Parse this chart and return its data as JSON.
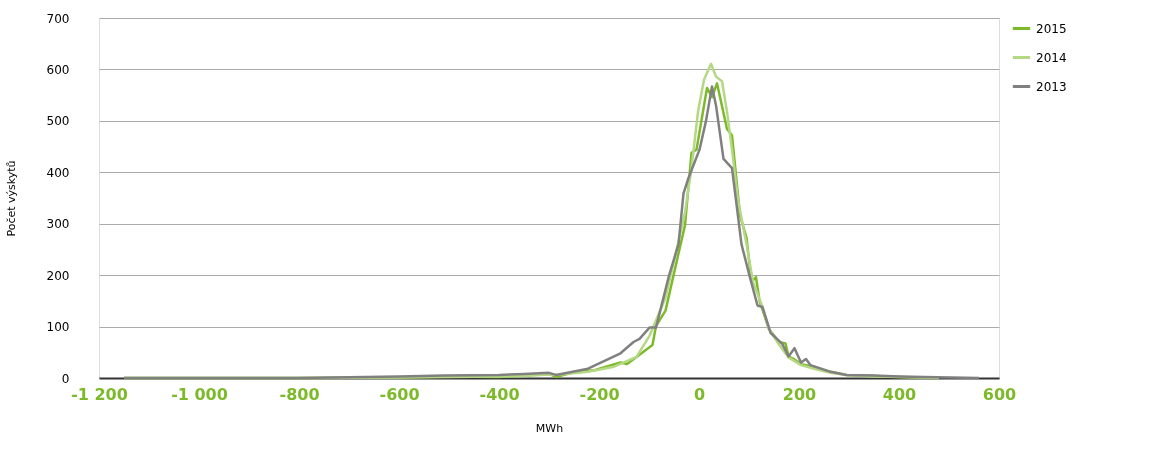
{
  "chart_data": {
    "type": "line",
    "xlabel": "MWh",
    "ylabel": "Počet výskytů",
    "xlim": [
      -1200,
      600
    ],
    "ylim": [
      0,
      700
    ],
    "xticks": [
      {
        "value": -1200,
        "label": "-1 200"
      },
      {
        "value": -1000,
        "label": "-1 000"
      },
      -800,
      -600,
      -400,
      -200,
      0,
      200,
      400,
      600
    ],
    "yticks": [
      0,
      100,
      200,
      300,
      400,
      500,
      600,
      700
    ],
    "grid": "y",
    "legend": "top right",
    "line_style": "solid",
    "marker": "none",
    "series": [
      {
        "name": "2015",
        "color": "#7dba2a",
        "x": [
          -1150,
          -1000,
          -800,
          -600,
          -500,
          -400,
          -350,
          -300,
          -286,
          -248,
          -209,
          -157,
          -144,
          -119,
          -93,
          -86,
          -67,
          -41,
          -28,
          -15,
          -5,
          16,
          26,
          36,
          56,
          66,
          82,
          95,
          105,
          114,
          121,
          140,
          160,
          173,
          179,
          191,
          204,
          230,
          263,
          295,
          350,
          400,
          480
        ],
        "values": [
          0,
          0,
          0,
          1,
          3,
          2,
          5,
          8,
          2,
          12,
          15,
          30,
          27,
          45,
          64,
          101,
          131,
          242,
          297,
          438,
          444,
          564,
          546,
          573,
          484,
          472,
          316,
          273,
          187,
          196,
          150,
          95,
          70,
          67,
          42,
          36,
          27,
          22,
          12,
          6,
          4,
          2,
          0
        ]
      },
      {
        "name": "2014",
        "color": "#b5d884",
        "x": [
          -1150,
          -1000,
          -800,
          -600,
          -500,
          -400,
          -350,
          -300,
          -286,
          -222,
          -170,
          -125,
          -99,
          -67,
          -48,
          -28,
          -15,
          -2,
          10,
          24,
          34,
          46,
          56,
          66,
          78,
          95,
          108,
          127,
          140,
          160,
          179,
          204,
          230,
          263,
          295,
          350,
          400,
          480
        ],
        "values": [
          0,
          0,
          0,
          1,
          2,
          3,
          4,
          7,
          6,
          12,
          22,
          41,
          82,
          156,
          236,
          322,
          408,
          518,
          580,
          611,
          586,
          577,
          518,
          444,
          346,
          260,
          187,
          138,
          95,
          65,
          40,
          25,
          18,
          10,
          6,
          3,
          2,
          0
        ]
      },
      {
        "name": "2013",
        "color": "#808080",
        "x": [
          -1150,
          -1000,
          -800,
          -600,
          -510,
          -400,
          -350,
          -300,
          -286,
          -222,
          -190,
          -157,
          -131,
          -119,
          -99,
          -86,
          -60,
          -41,
          -31,
          -21,
          1,
          14,
          26,
          34,
          49,
          66,
          85,
          101,
          117,
          127,
          143,
          166,
          179,
          191,
          204,
          214,
          223,
          263,
          295,
          350,
          400,
          450,
          560
        ],
        "values": [
          0,
          0,
          0,
          3,
          5,
          6,
          8,
          10,
          6,
          18,
          33,
          48,
          70,
          76,
          98,
          98,
          199,
          260,
          359,
          389,
          444,
          500,
          567,
          530,
          426,
          408,
          260,
          199,
          141,
          138,
          88,
          67,
          42,
          58,
          30,
          37,
          25,
          12,
          6,
          5,
          3,
          2,
          0
        ]
      }
    ]
  }
}
